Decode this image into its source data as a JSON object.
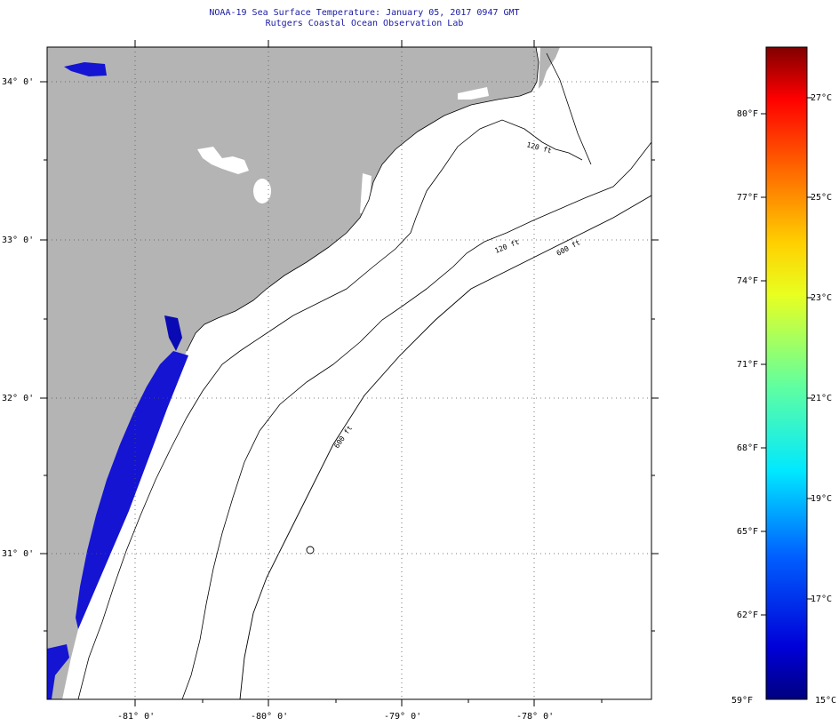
{
  "header": {
    "title": "NOAA-19 Sea Surface Temperature:  January 05, 2017 0947 GMT",
    "subtitle": "Rutgers Coastal Ocean Observation Lab"
  },
  "map": {
    "lat_labels": [
      "34° 0'",
      "33° 0'",
      "32° 0'",
      "31° 0'"
    ],
    "lon_labels": [
      "-81° 0'",
      "-80° 0'",
      "-79° 0'",
      "-78° 0'"
    ],
    "contour_labels": [
      "120 ft",
      "600 ft",
      "600 ft",
      "120 ft"
    ],
    "land_color": "#b4b4b4",
    "water_color": "#ffffff",
    "sst_color": "#1414d2"
  },
  "colorbar": {
    "fahrenheit": [
      "80°F",
      "77°F",
      "74°F",
      "71°F",
      "68°F",
      "65°F",
      "62°F",
      "59°F"
    ],
    "celsius": [
      "27°C",
      "25°C",
      "23°C",
      "21°C",
      "19°C",
      "17°C",
      "15°C"
    ],
    "colors": [
      "#000080",
      "#0000ff",
      "#0080ff",
      "#00ffff",
      "#80ff80",
      "#ffff00",
      "#ff8000",
      "#ff0000",
      "#800000"
    ]
  }
}
